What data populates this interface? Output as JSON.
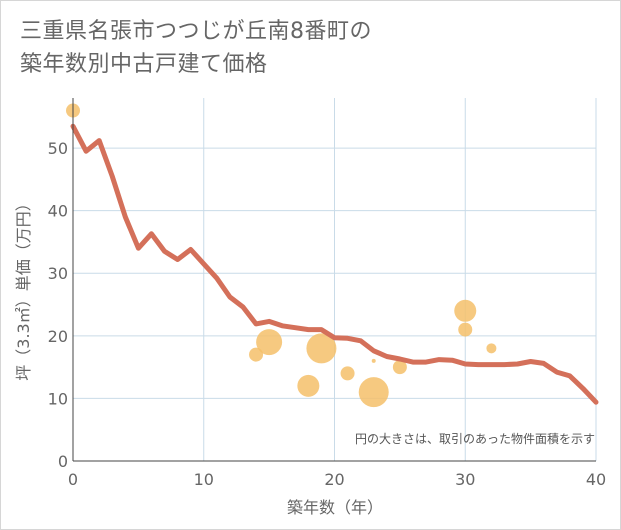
{
  "title": {
    "line1": "三重県名張市つつじが丘南8番町の",
    "line2": "築年数別中古戸建て価格"
  },
  "note": "円の大きさは、取引のあった物件面積を示す",
  "colors": {
    "line": "#d4705a",
    "bubble": "#f5bf6a",
    "grid": "#c9dbe8",
    "axis": "#444444",
    "text": "#666666"
  },
  "chart_data": {
    "type": "line",
    "xlabel": "築年数（年）",
    "ylabel": "坪（3.3㎡）単価（万円）",
    "xlim": [
      0,
      40
    ],
    "ylim": [
      0,
      58
    ],
    "x_ticks": [
      "0",
      "10",
      "20",
      "30",
      "40"
    ],
    "y_ticks": [
      "0",
      "10",
      "20",
      "30",
      "40",
      "50"
    ],
    "grid": true,
    "line_series": {
      "x": [
        0,
        1,
        2,
        3,
        4,
        5,
        6,
        7,
        8,
        9,
        10,
        11,
        12,
        13,
        14,
        15,
        16,
        17,
        18,
        19,
        20,
        21,
        22,
        23,
        24,
        25,
        26,
        27,
        28,
        29,
        30,
        31,
        32,
        33,
        34,
        35,
        36,
        37,
        38,
        39,
        40
      ],
      "y": [
        53.5,
        49.5,
        51.2,
        45.5,
        39,
        34,
        36.3,
        33.5,
        32.2,
        33.8,
        31.5,
        29.2,
        26.2,
        24.6,
        21.9,
        22.3,
        21.6,
        21.3,
        21,
        21,
        19.7,
        19.6,
        19.2,
        17.6,
        16.7,
        16.3,
        15.8,
        15.8,
        16.2,
        16.1,
        15.5,
        15.4,
        15.4,
        15.4,
        15.5,
        15.9,
        15.6,
        14.2,
        13.6,
        11.6,
        9.4
      ]
    },
    "bubbles": [
      {
        "x": 0,
        "y": 56,
        "size": 7
      },
      {
        "x": 14,
        "y": 17,
        "size": 7
      },
      {
        "x": 15,
        "y": 19,
        "size": 13
      },
      {
        "x": 18,
        "y": 12,
        "size": 11
      },
      {
        "x": 19,
        "y": 18,
        "size": 15
      },
      {
        "x": 21,
        "y": 14,
        "size": 7
      },
      {
        "x": 23,
        "y": 11,
        "size": 15
      },
      {
        "x": 23,
        "y": 16,
        "size": 2
      },
      {
        "x": 25,
        "y": 15,
        "size": 7
      },
      {
        "x": 30,
        "y": 24,
        "size": 11
      },
      {
        "x": 30,
        "y": 21,
        "size": 7
      },
      {
        "x": 32,
        "y": 18,
        "size": 5
      }
    ]
  }
}
